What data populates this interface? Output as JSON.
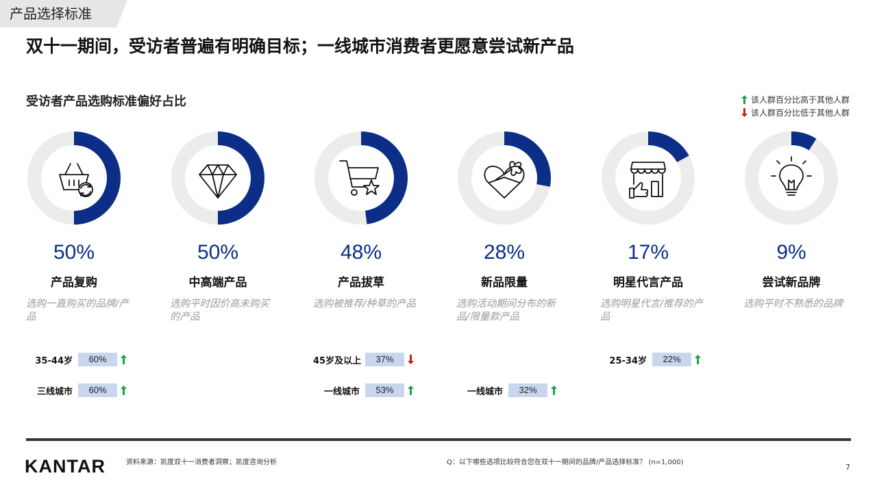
{
  "header": {
    "tag": "产品选择标准",
    "headline": "双十一期间，受访者普遍有明确目标；一线城市消费者更愿意尝试新产品",
    "subtitle": "受访者产品选购标准偏好占比"
  },
  "legend": {
    "up": "该人群百分比高于其他人群",
    "down": "该人群百分比低于其他人群",
    "up_color": "#16a34a",
    "down_color": "#cc1b1b"
  },
  "colors": {
    "accent": "#0c2e86",
    "track": "#ececea",
    "highlight_box": "#c8d6ef"
  },
  "chart_data": {
    "type": "donut",
    "title": "受访者产品选购标准偏好占比",
    "unit": "%",
    "max": 100,
    "items": [
      {
        "label": "产品复购",
        "value": 50,
        "display": "50%",
        "icon": "basket-refresh-icon",
        "description": "选购一直购买的品牌/产品",
        "segments": [
          {
            "group": "35-44岁",
            "value": "60%",
            "direction": "up"
          },
          {
            "group": "三线城市",
            "value": "60%",
            "direction": "up"
          }
        ]
      },
      {
        "label": "中高端产品",
        "value": 50,
        "display": "50%",
        "icon": "diamond-icon",
        "description": "选购平时因价高未购买的产品",
        "segments": []
      },
      {
        "label": "产品拔草",
        "value": 48,
        "display": "48%",
        "icon": "cart-star-icon",
        "description": "选购被推荐/种草的产品",
        "segments": [
          {
            "group": "45岁及以上",
            "value": "37%",
            "direction": "down"
          },
          {
            "group": "一线城市",
            "value": "53%",
            "direction": "up"
          }
        ]
      },
      {
        "label": "新品限量",
        "value": 28,
        "display": "28%",
        "icon": "gift-heart-icon",
        "description": "选购活动期间分布的新品/限量款产品",
        "segments": [
          {
            "group": "一线城市",
            "value": "32%",
            "direction": "up"
          }
        ]
      },
      {
        "label": "明星代言产品",
        "value": 17,
        "display": "17%",
        "icon": "store-thumbs-up-icon",
        "description": "选购明星代言/推荐的产品",
        "segments": [
          {
            "group": "25-34岁",
            "value": "22%",
            "direction": "up"
          }
        ]
      },
      {
        "label": "尝试新品牌",
        "value": 9,
        "display": "9%",
        "icon": "lightbulb-icon",
        "description": "选购平时不熟悉的品牌",
        "segments": []
      }
    ]
  },
  "footer": {
    "logo": "KANTAR",
    "source": "资料来源：凯度双十一消费者洞察；凯度咨询分析",
    "question": "Q：以下哪些选项比较符合您在双十一期间的品牌/产品选择标准？ (n=1,000)",
    "page": "7"
  }
}
